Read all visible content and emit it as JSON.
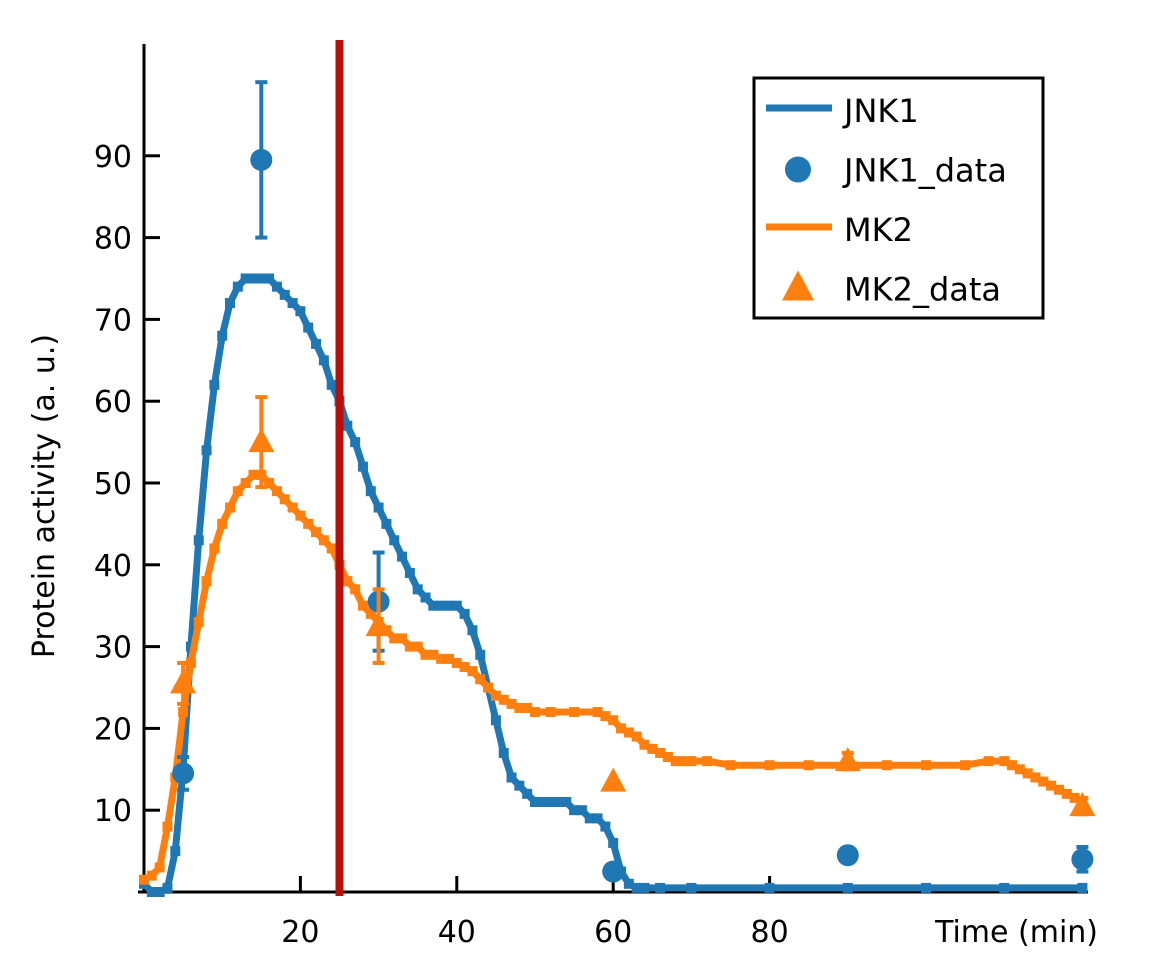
{
  "chart_data": {
    "type": "line",
    "title": "",
    "xlabel": "Time (min)",
    "ylabel": "Protein activity (a. u.)",
    "xlim": [
      0,
      120
    ],
    "ylim": [
      0,
      100
    ],
    "x_ticks": [
      20,
      40,
      60,
      80
    ],
    "y_ticks": [
      10,
      20,
      30,
      40,
      50,
      60,
      70,
      80,
      90
    ],
    "grid": false,
    "legend_position": "top-right",
    "vertical_marker": {
      "x": 25,
      "color": "#b80f0a"
    },
    "colors": {
      "JNK1": "#1f77b4",
      "MK2": "#ff7f0e"
    },
    "series": [
      {
        "name": "JNK1",
        "kind": "line",
        "color": "#1f77b4",
        "points": [
          [
            0,
            1
          ],
          [
            1,
            0
          ],
          [
            2,
            0
          ],
          [
            3,
            0.5
          ],
          [
            4,
            5
          ],
          [
            5,
            15
          ],
          [
            6,
            30
          ],
          [
            7,
            43
          ],
          [
            8,
            54
          ],
          [
            9,
            62
          ],
          [
            10,
            68
          ],
          [
            11,
            72
          ],
          [
            12,
            74
          ],
          [
            13,
            75
          ],
          [
            14,
            75
          ],
          [
            15,
            75
          ],
          [
            16,
            75
          ],
          [
            17,
            74
          ],
          [
            18,
            73
          ],
          [
            19,
            72
          ],
          [
            20,
            71
          ],
          [
            21,
            69
          ],
          [
            22,
            67
          ],
          [
            23,
            65
          ],
          [
            24,
            62
          ],
          [
            25,
            60
          ],
          [
            26,
            57
          ],
          [
            27,
            55
          ],
          [
            28,
            52
          ],
          [
            29,
            49
          ],
          [
            30,
            47
          ],
          [
            31,
            45
          ],
          [
            32,
            43
          ],
          [
            33,
            41
          ],
          [
            34,
            39
          ],
          [
            35,
            37
          ],
          [
            36,
            36
          ],
          [
            37,
            35
          ],
          [
            38,
            35
          ],
          [
            39,
            35
          ],
          [
            40,
            35
          ],
          [
            41,
            34
          ],
          [
            42,
            32
          ],
          [
            43,
            29
          ],
          [
            44,
            25
          ],
          [
            45,
            21
          ],
          [
            46,
            17
          ],
          [
            47,
            14
          ],
          [
            48,
            13
          ],
          [
            49,
            12
          ],
          [
            50,
            11
          ],
          [
            51,
            11
          ],
          [
            52,
            11
          ],
          [
            53,
            11
          ],
          [
            54,
            11
          ],
          [
            55,
            10
          ],
          [
            56,
            10
          ],
          [
            57,
            9
          ],
          [
            58,
            9
          ],
          [
            59,
            8
          ],
          [
            60,
            6
          ],
          [
            61,
            2.5
          ],
          [
            62,
            1
          ],
          [
            63,
            0.5
          ],
          [
            64,
            0.5
          ],
          [
            66,
            0.5
          ],
          [
            70,
            0.5
          ],
          [
            80,
            0.5
          ],
          [
            90,
            0.5
          ],
          [
            100,
            0.5
          ],
          [
            110,
            0.5
          ],
          [
            120,
            0.5
          ]
        ]
      },
      {
        "name": "JNK1_data",
        "kind": "points",
        "marker": "circle",
        "color": "#1f77b4",
        "points": [
          [
            5,
            14.5,
            2
          ],
          [
            15,
            89.5,
            9.5
          ],
          [
            30,
            35.5,
            6
          ],
          [
            60,
            2.5,
            0.5
          ],
          [
            90,
            4.5,
            0
          ],
          [
            120,
            4,
            1.5
          ]
        ]
      },
      {
        "name": "MK2",
        "kind": "line",
        "color": "#ff7f0e",
        "points": [
          [
            0,
            1.5
          ],
          [
            1,
            2
          ],
          [
            2,
            3
          ],
          [
            3,
            8
          ],
          [
            4,
            14
          ],
          [
            5,
            22
          ],
          [
            6,
            28
          ],
          [
            7,
            33
          ],
          [
            8,
            38
          ],
          [
            9,
            42
          ],
          [
            10,
            45
          ],
          [
            11,
            47
          ],
          [
            12,
            49
          ],
          [
            13,
            50
          ],
          [
            14,
            51
          ],
          [
            15,
            51
          ],
          [
            16,
            50
          ],
          [
            17,
            49
          ],
          [
            18,
            48
          ],
          [
            19,
            47
          ],
          [
            20,
            46
          ],
          [
            21,
            45
          ],
          [
            22,
            44
          ],
          [
            23,
            43
          ],
          [
            24,
            42
          ],
          [
            25,
            40
          ],
          [
            26,
            38
          ],
          [
            27,
            37
          ],
          [
            28,
            35
          ],
          [
            29,
            34
          ],
          [
            30,
            33
          ],
          [
            31,
            32
          ],
          [
            32,
            31
          ],
          [
            33,
            31
          ],
          [
            34,
            30
          ],
          [
            35,
            30
          ],
          [
            36,
            29
          ],
          [
            37,
            29
          ],
          [
            38,
            28.5
          ],
          [
            39,
            28.5
          ],
          [
            40,
            28
          ],
          [
            41,
            27.5
          ],
          [
            42,
            27
          ],
          [
            43,
            26
          ],
          [
            44,
            25
          ],
          [
            45,
            24
          ],
          [
            46,
            23.5
          ],
          [
            47,
            23
          ],
          [
            48,
            22.5
          ],
          [
            49,
            22.5
          ],
          [
            50,
            22
          ],
          [
            52,
            22
          ],
          [
            55,
            22
          ],
          [
            58,
            22
          ],
          [
            59,
            21.5
          ],
          [
            60,
            21
          ],
          [
            61,
            20
          ],
          [
            62,
            19.5
          ],
          [
            63,
            19
          ],
          [
            64,
            18
          ],
          [
            65,
            17.5
          ],
          [
            66,
            17
          ],
          [
            67,
            16.5
          ],
          [
            68,
            16
          ],
          [
            69,
            16
          ],
          [
            70,
            16
          ],
          [
            72,
            16
          ],
          [
            75,
            15.5
          ],
          [
            80,
            15.5
          ],
          [
            85,
            15.5
          ],
          [
            90,
            15.5
          ],
          [
            95,
            15.5
          ],
          [
            100,
            15.5
          ],
          [
            105,
            15.5
          ],
          [
            108,
            16
          ],
          [
            110,
            16
          ],
          [
            111,
            15.5
          ],
          [
            112,
            15
          ],
          [
            113,
            14.5
          ],
          [
            114,
            14
          ],
          [
            115,
            13.5
          ],
          [
            116,
            13
          ],
          [
            117,
            12.5
          ],
          [
            118,
            12
          ],
          [
            119,
            11.5
          ],
          [
            120,
            11
          ]
        ]
      },
      {
        "name": "MK2_data",
        "kind": "points",
        "marker": "triangle",
        "color": "#ff7f0e",
        "points": [
          [
            5,
            25.5,
            2.5
          ],
          [
            15,
            55,
            5.5
          ],
          [
            30,
            32.5,
            4.5
          ],
          [
            60,
            13.5,
            0
          ],
          [
            90,
            16,
            1
          ],
          [
            120,
            10.5,
            1
          ]
        ]
      }
    ]
  }
}
